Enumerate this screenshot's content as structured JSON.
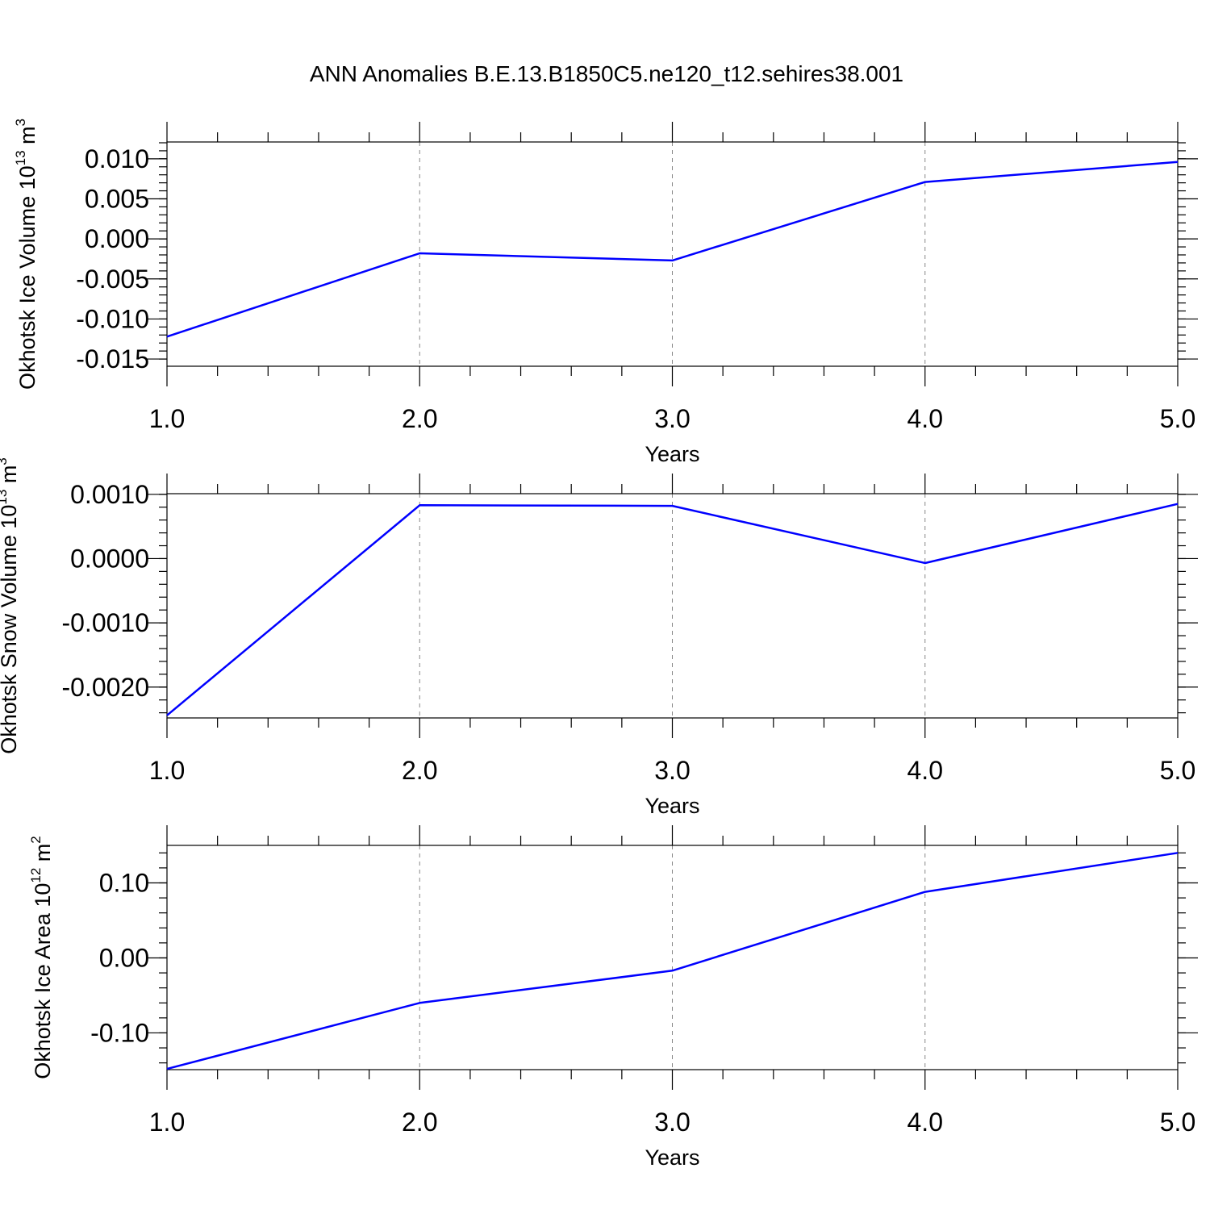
{
  "title": "ANN Anomalies B.E.13.B1850C5.ne120_t12.sehires38.001",
  "colors": {
    "line": "#0000ff",
    "axis": "#000000",
    "grid": "#888888"
  },
  "chart_data": [
    {
      "type": "line",
      "ylabel": "Okhotsk Ice Volume 10",
      "ylabel_exp": "13",
      "ylabel_unit": " m",
      "ylabel_unit_exp": "3",
      "xlabel": "Years",
      "x": [
        1,
        2,
        3,
        4,
        5
      ],
      "values": [
        -0.0122,
        -0.0018,
        -0.0027,
        0.0071,
        0.0096
      ],
      "xlim": [
        1,
        5
      ],
      "ylim": [
        -0.0159,
        0.0121
      ],
      "xticks": [
        1,
        2,
        3,
        4,
        5
      ],
      "xtick_labels": [
        "1.0",
        "2.0",
        "3.0",
        "4.0",
        "5.0"
      ],
      "yticks": [
        -0.015,
        -0.01,
        -0.005,
        0.0,
        0.005,
        0.01
      ],
      "ytick_labels": [
        "-0.015",
        "-0.010",
        "-0.005",
        "0.000",
        "0.005",
        "0.010"
      ],
      "yminor_step": 0.001,
      "grid": "x-dashed"
    },
    {
      "type": "line",
      "ylabel": "Okhotsk Snow Volume 10",
      "ylabel_exp": "13",
      "ylabel_unit": " m",
      "ylabel_unit_exp": "3",
      "xlabel": "Years",
      "x": [
        1,
        2,
        3,
        4,
        5
      ],
      "values": [
        -0.00244,
        0.00083,
        0.00082,
        -7e-05,
        0.00085
      ],
      "xlim": [
        1,
        5
      ],
      "ylim": [
        -0.00248,
        0.00101
      ],
      "xticks": [
        1,
        2,
        3,
        4,
        5
      ],
      "xtick_labels": [
        "1.0",
        "2.0",
        "3.0",
        "4.0",
        "5.0"
      ],
      "yticks": [
        -0.002,
        -0.001,
        0.0,
        0.001
      ],
      "ytick_labels": [
        "-0.0020",
        "-0.0010",
        "0.0000",
        "0.0010"
      ],
      "yminor_step": 0.0002,
      "grid": "x-dashed"
    },
    {
      "type": "line",
      "ylabel": "Okhotsk Ice Area 10",
      "ylabel_exp": "12",
      "ylabel_unit": " m",
      "ylabel_unit_exp": "2",
      "xlabel": "Years",
      "x": [
        1,
        2,
        3,
        4,
        5
      ],
      "values": [
        -0.148,
        -0.06,
        -0.017,
        0.088,
        0.14
      ],
      "xlim": [
        1,
        5
      ],
      "ylim": [
        -0.149,
        0.15
      ],
      "xticks": [
        1,
        2,
        3,
        4,
        5
      ],
      "xtick_labels": [
        "1.0",
        "2.0",
        "3.0",
        "4.0",
        "5.0"
      ],
      "yticks": [
        -0.1,
        0.0,
        0.1
      ],
      "ytick_labels": [
        "-0.10",
        "0.00",
        "0.10"
      ],
      "yminor_step": 0.02,
      "grid": "x-dashed"
    }
  ]
}
